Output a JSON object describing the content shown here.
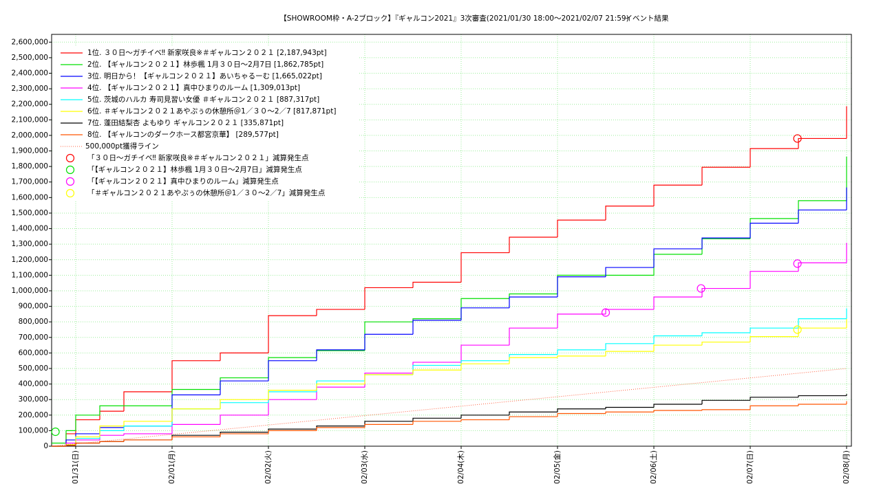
{
  "chart_data": {
    "type": "line",
    "title": "【SHOWROOM枠・A-2ブロック】『ギャルコン2021』3次審査(2021/01/30 18:00〜2021/02/07 21:59)",
    "subtitle": "イベント結果",
    "x": [
      -0.25,
      -0.1,
      0,
      0.25,
      0.5,
      1,
      1.5,
      2,
      2.5,
      3,
      3.5,
      4,
      4.5,
      5,
      5.5,
      6,
      6.5,
      7,
      7.5,
      8
    ],
    "xlim": [
      -0.25,
      8.05
    ],
    "xticks": [
      {
        "value": 0,
        "label": "01/31(日)"
      },
      {
        "value": 1,
        "label": "02/01(月)"
      },
      {
        "value": 2,
        "label": "02/02(火)"
      },
      {
        "value": 3,
        "label": "02/03(水)"
      },
      {
        "value": 4,
        "label": "02/04(木)"
      },
      {
        "value": 5,
        "label": "02/05(金)"
      },
      {
        "value": 6,
        "label": "02/06(土)"
      },
      {
        "value": 7,
        "label": "02/07(日)"
      },
      {
        "value": 8,
        "label": "02/08(月)"
      }
    ],
    "ylim": [
      0,
      2650000
    ],
    "yticks": [
      0,
      {
        "value": 100000,
        "label": "100,000"
      },
      {
        "value": 200000,
        "label": "200,000"
      },
      {
        "value": 300000,
        "label": "300,000"
      },
      {
        "value": 400000,
        "label": "400,000"
      },
      {
        "value": 500000,
        "label": "500,000"
      },
      {
        "value": 600000,
        "label": "600,000"
      },
      {
        "value": 700000,
        "label": "700,000"
      },
      {
        "value": 800000,
        "label": "800,000"
      },
      {
        "value": 900000,
        "label": "900,000"
      },
      {
        "value": 1000000,
        "label": "1,000,000"
      },
      {
        "value": 1100000,
        "label": "1,100,000"
      },
      {
        "value": 1200000,
        "label": "1,200,000"
      },
      {
        "value": 1300000,
        "label": "1,300,000"
      },
      {
        "value": 1400000,
        "label": "1,400,000"
      },
      {
        "value": 1500000,
        "label": "1,500,000"
      },
      {
        "value": 1600000,
        "label": "1,600,000"
      },
      {
        "value": 1700000,
        "label": "1,700,000"
      },
      {
        "value": 1800000,
        "label": "1,800,000"
      },
      {
        "value": 1900000,
        "label": "1,900,000"
      },
      {
        "value": 2000000,
        "label": "2,000,000"
      },
      {
        "value": 2100000,
        "label": "2,100,000"
      },
      {
        "value": 2200000,
        "label": "2,200,000"
      },
      {
        "value": 2300000,
        "label": "2,300,000"
      },
      {
        "value": 2400000,
        "label": "2,400,000"
      },
      {
        "value": 2500000,
        "label": "2,500,000"
      },
      {
        "value": 2600000,
        "label": "2,600,000"
      }
    ],
    "grid": true,
    "legend": "upper left",
    "series": [
      {
        "name": "1位. ３０日〜ガチイベ‼ 新家咲良※＃ギャルコン２０２１ [2,187,943pt]",
        "color": "#ff0000",
        "values": [
          0,
          80000,
          170000,
          225000,
          350000,
          550000,
          600000,
          840000,
          880000,
          1020000,
          1055000,
          1245000,
          1345000,
          1455000,
          1545000,
          1680000,
          1795000,
          1915000,
          1980000,
          2187943
        ]
      },
      {
        "name": "2位. 【ギャルコン２０２１】林歩楓 1月３０日〜2月7日 [1,862,785pt]",
        "color": "#00e000",
        "values": [
          20000,
          100000,
          200000,
          260000,
          260000,
          365000,
          440000,
          570000,
          615000,
          800000,
          820000,
          950000,
          980000,
          1100000,
          1100000,
          1235000,
          1335000,
          1465000,
          1580000,
          1862785
        ]
      },
      {
        "name": "3位. 明日から！【ギャルコン２０２１】あいちゃるーむ [1,665,022pt]",
        "color": "#0000ff",
        "values": [
          0,
          40000,
          80000,
          120000,
          130000,
          330000,
          420000,
          550000,
          620000,
          720000,
          810000,
          890000,
          960000,
          1090000,
          1150000,
          1270000,
          1340000,
          1435000,
          1520000,
          1665022
        ]
      },
      {
        "name": "4位. 【ギャルコン２０２１】真中ひまりのルーム [1,309,013pt]",
        "color": "#ff00ff",
        "values": [
          0,
          20000,
          40000,
          70000,
          80000,
          140000,
          200000,
          300000,
          380000,
          470000,
          540000,
          650000,
          760000,
          850000,
          880000,
          960000,
          1015000,
          1125000,
          1180000,
          1309013
        ]
      },
      {
        "name": "5位. 茨城のハルカ 寿司見習い女優 ＃ギャルコン２０２１ [887,317pt]",
        "color": "#00ffff",
        "values": [
          0,
          10000,
          50000,
          100000,
          130000,
          240000,
          280000,
          350000,
          420000,
          460000,
          520000,
          550000,
          590000,
          620000,
          660000,
          710000,
          730000,
          760000,
          820000,
          887317
        ]
      },
      {
        "name": "6位. ＃ギャルコン２０２１あやぷぅの休憩所＠1／３０〜2／7 [817,871pt]",
        "color": "#ffff00",
        "values": [
          0,
          10000,
          60000,
          130000,
          160000,
          240000,
          300000,
          360000,
          400000,
          460000,
          490000,
          530000,
          570000,
          580000,
          610000,
          650000,
          670000,
          705000,
          760000,
          817871
        ]
      },
      {
        "name": "7位. 蓬田結梨杏 よもゆり ギャルコン２０２１ [335,871pt]",
        "color": "#000000",
        "values": [
          0,
          5000,
          20000,
          30000,
          40000,
          70000,
          90000,
          110000,
          130000,
          160000,
          180000,
          200000,
          220000,
          240000,
          250000,
          270000,
          295000,
          315000,
          325000,
          335871
        ]
      },
      {
        "name": "8位. 【ギャルコンのダークホース都宮京華】 [289,577pt]",
        "color": "#ff5500",
        "values": [
          0,
          5000,
          20000,
          30000,
          40000,
          60000,
          80000,
          100000,
          120000,
          140000,
          160000,
          170000,
          190000,
          210000,
          220000,
          230000,
          235000,
          260000,
          270000,
          289577
        ]
      }
    ],
    "target_line": {
      "name": "500,000pt獲得ライン",
      "color": "#ff6040",
      "x": [
        -0.25,
        8
      ],
      "values": [
        0,
        500000
      ]
    },
    "points": [
      {
        "name": "「３０日〜ガチイベ‼ 新家咲良※＃ギャルコン２０２１」減算発生点",
        "color": "#ff0000",
        "x": [
          7.49
        ],
        "values": [
          1980000
        ]
      },
      {
        "name": "「【ギャルコン２０２１】林歩楓 1月３０日〜2月7日」減算発生点",
        "color": "#00e000",
        "x": [
          -0.21
        ],
        "values": [
          93000
        ]
      },
      {
        "name": "「【ギャルコン２０２１】真中ひまりのルーム」減算発生点",
        "color": "#ff00ff",
        "x": [
          5.5,
          6.49,
          7.49
        ],
        "values": [
          860000,
          1015000,
          1175000
        ]
      },
      {
        "name": "「＃ギャルコン２０２１あやぷぅの休憩所＠1／３０〜2／7」減算発生点",
        "color": "#ffff00",
        "x": [
          7.49
        ],
        "values": [
          750000
        ]
      }
    ]
  }
}
